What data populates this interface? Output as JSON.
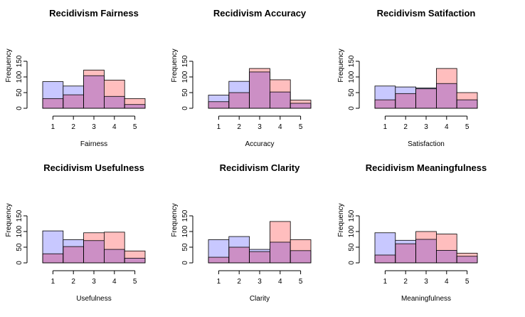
{
  "colors": {
    "series_a": "#c8c8ff",
    "series_b": "#ffbebe",
    "overlap": "#cc8fc5",
    "stroke": "#000000"
  },
  "chart_data": [
    {
      "type": "bar",
      "title": "Recidivism Fairness",
      "xlabel": "Fairness",
      "ylabel": "Frequency",
      "categories": [
        "1",
        "2",
        "3",
        "4",
        "5"
      ],
      "ylim": [
        0,
        150
      ],
      "y_ticks": [
        0,
        50,
        100,
        150
      ],
      "series": [
        {
          "values": [
            85,
            71,
            104,
            38,
            12
          ]
        },
        {
          "values": [
            31,
            43,
            122,
            90,
            31
          ]
        }
      ]
    },
    {
      "type": "bar",
      "title": "Recidivism Accuracy",
      "xlabel": "Accuracy",
      "ylabel": "Frequency",
      "categories": [
        "1",
        "2",
        "3",
        "4",
        "5"
      ],
      "ylim": [
        0,
        150
      ],
      "y_ticks": [
        0,
        50,
        100,
        150
      ],
      "series": [
        {
          "values": [
            42,
            86,
            116,
            52,
            16
          ]
        },
        {
          "values": [
            21,
            50,
            127,
            91,
            26
          ]
        }
      ]
    },
    {
      "type": "bar",
      "title": "Recidivism Satifaction",
      "xlabel": "Satisfaction",
      "ylabel": "Frequency",
      "categories": [
        "1",
        "2",
        "3",
        "4",
        "5"
      ],
      "ylim": [
        0,
        150
      ],
      "y_ticks": [
        0,
        50,
        100,
        150
      ],
      "series": [
        {
          "values": [
            71,
            68,
            65,
            79,
            27
          ]
        },
        {
          "values": [
            27,
            47,
            62,
            127,
            50
          ]
        }
      ]
    },
    {
      "type": "bar",
      "title": "Recidivism Usefulness",
      "xlabel": "Usefulness",
      "ylabel": "Frequency",
      "categories": [
        "1",
        "2",
        "3",
        "4",
        "5"
      ],
      "ylim": [
        0,
        150
      ],
      "y_ticks": [
        0,
        50,
        100,
        150
      ],
      "series": [
        {
          "values": [
            102,
            74,
            71,
            43,
            15
          ]
        },
        {
          "values": [
            29,
            52,
            96,
            98,
            38
          ]
        }
      ]
    },
    {
      "type": "bar",
      "title": "Recidivism Clarity",
      "xlabel": "Clarity",
      "ylabel": "Frequency",
      "categories": [
        "1",
        "2",
        "3",
        "4",
        "5"
      ],
      "ylim": [
        0,
        150
      ],
      "y_ticks": [
        0,
        50,
        100,
        150
      ],
      "series": [
        {
          "values": [
            74,
            84,
            43,
            66,
            39
          ]
        },
        {
          "values": [
            18,
            50,
            36,
            132,
            74
          ]
        }
      ]
    },
    {
      "type": "bar",
      "title": "Recidivism Meaningfulness",
      "xlabel": "Meaningfulness",
      "ylabel": "Frequency",
      "categories": [
        "1",
        "2",
        "3",
        "4",
        "5"
      ],
      "ylim": [
        0,
        150
      ],
      "y_ticks": [
        0,
        50,
        100,
        150
      ],
      "series": [
        {
          "values": [
            96,
            72,
            75,
            40,
            21
          ]
        },
        {
          "values": [
            25,
            61,
            100,
            92,
            31
          ]
        }
      ]
    }
  ]
}
